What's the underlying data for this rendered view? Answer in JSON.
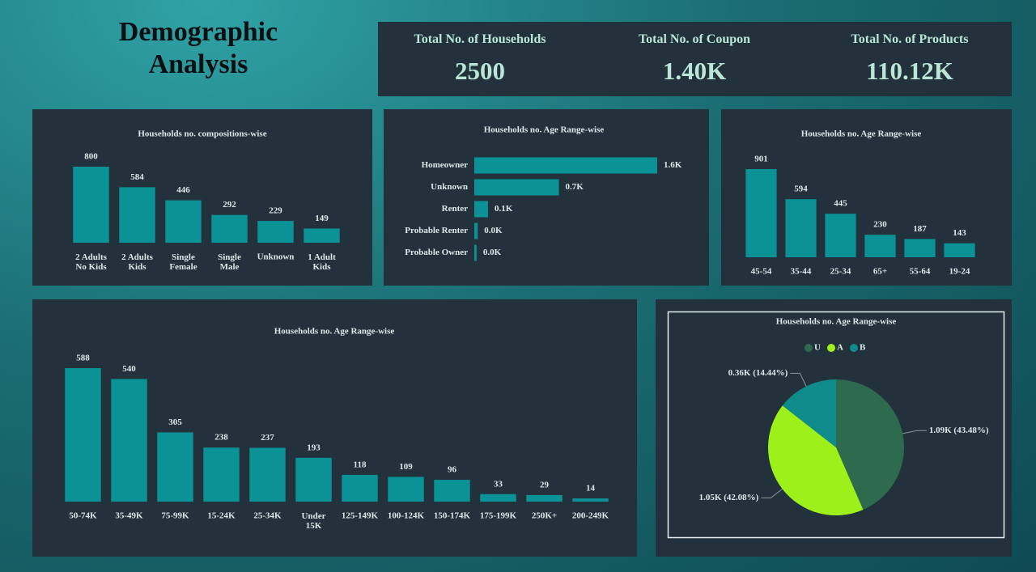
{
  "title": "Demographic Analysis",
  "kpis": [
    {
      "label": "Total No. of Households",
      "value": "2500"
    },
    {
      "label": "Total No. of Coupon",
      "value": "1.40K"
    },
    {
      "label": "Total No. of Products",
      "value": "110.12K"
    }
  ],
  "chart_data": [
    {
      "type": "bar",
      "title": "Households no. compositions-wise",
      "color": "#0b9297",
      "categories": [
        "2 Adults No Kids",
        "2 Adults Kids",
        "Single Female",
        "Single Male",
        "Unknown",
        "1 Adult Kids"
      ],
      "values": [
        800,
        584,
        446,
        292,
        229,
        149
      ]
    },
    {
      "type": "hbar",
      "title": "Households no. Age Range-wise",
      "color": "#0b9297",
      "categories": [
        "Homeowner",
        "Unknown",
        "Renter",
        "Probable Renter",
        "Probable Owner"
      ],
      "values": [
        1600,
        740,
        120,
        30,
        20
      ],
      "value_labels": [
        "1.6K",
        "0.7K",
        "0.1K",
        "0.0K",
        "0.0K"
      ]
    },
    {
      "type": "bar",
      "title": "Households no. Age Range-wise",
      "color": "#0b9297",
      "categories": [
        "45-54",
        "35-44",
        "25-34",
        "65+",
        "55-64",
        "19-24"
      ],
      "values": [
        901,
        594,
        445,
        230,
        187,
        143
      ]
    },
    {
      "type": "bar",
      "title": "Households no. Age Range-wise",
      "color": "#0b9297",
      "categories": [
        "50-74K",
        "35-49K",
        "75-99K",
        "15-24K",
        "25-34K",
        "Under 15K",
        "125-149K",
        "100-124K",
        "150-174K",
        "175-199K",
        "250K+",
        "200-249K"
      ],
      "values": [
        588,
        540,
        305,
        238,
        237,
        193,
        118,
        109,
        96,
        33,
        29,
        14
      ]
    },
    {
      "type": "pie",
      "title": "Households no. Age Range-wise",
      "legend": "top",
      "categories": [
        "U",
        "A",
        "B"
      ],
      "colors": [
        "#2e6a4e",
        "#9ef01a",
        "#0e8c8c"
      ],
      "values": [
        1087,
        1052,
        361
      ],
      "value_labels": [
        "1.09K (43.48%)",
        "1.05K (42.08%)",
        "0.36K (14.44%)"
      ]
    }
  ]
}
